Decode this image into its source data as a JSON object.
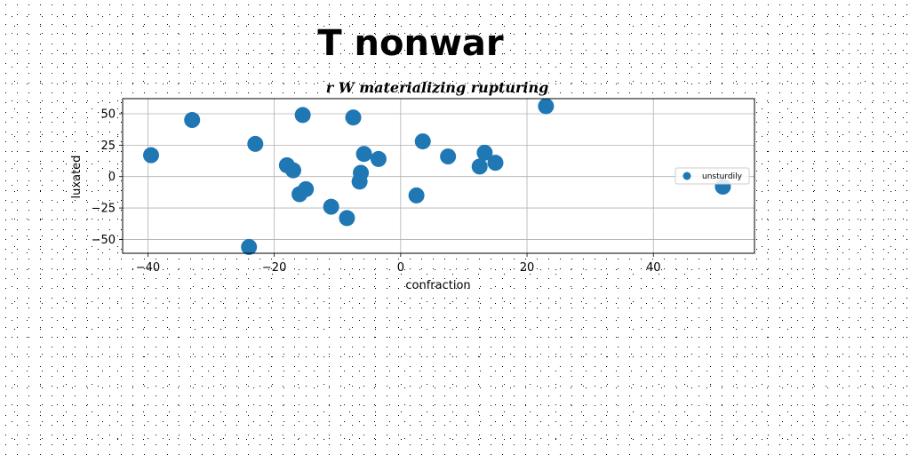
{
  "chart_data": {
    "type": "scatter",
    "title": "T nonwar",
    "subtitle": "r W materializing rupturing",
    "xlabel": "confraction",
    "ylabel": "luxated",
    "xlim": [
      -44,
      56
    ],
    "ylim": [
      -61,
      62
    ],
    "xticks": [
      -40,
      -20,
      0,
      20,
      40
    ],
    "yticks": [
      -50,
      -25,
      0,
      25,
      50
    ],
    "grid": true,
    "legend_position": "center-right",
    "series": [
      {
        "name": "unsturdily",
        "color": "#1f77b4",
        "points": [
          {
            "x": -39.5,
            "y": 17
          },
          {
            "x": -33,
            "y": 45
          },
          {
            "x": -23,
            "y": 26
          },
          {
            "x": -24,
            "y": -56
          },
          {
            "x": -18,
            "y": 9
          },
          {
            "x": -17,
            "y": 5
          },
          {
            "x": -16,
            "y": -14
          },
          {
            "x": -15,
            "y": -10
          },
          {
            "x": -15.5,
            "y": 49
          },
          {
            "x": -11,
            "y": -24
          },
          {
            "x": -8.5,
            "y": -33
          },
          {
            "x": -7.5,
            "y": 47
          },
          {
            "x": -6.5,
            "y": -4
          },
          {
            "x": -6.3,
            "y": 3
          },
          {
            "x": -5.8,
            "y": 18
          },
          {
            "x": -3.5,
            "y": 14
          },
          {
            "x": 2.5,
            "y": -15
          },
          {
            "x": 3.5,
            "y": 28
          },
          {
            "x": 7.5,
            "y": 16
          },
          {
            "x": 12.5,
            "y": 8
          },
          {
            "x": 13.3,
            "y": 19
          },
          {
            "x": 15,
            "y": 11
          },
          {
            "x": 23,
            "y": 56
          },
          {
            "x": 51,
            "y": -8
          }
        ]
      }
    ]
  }
}
